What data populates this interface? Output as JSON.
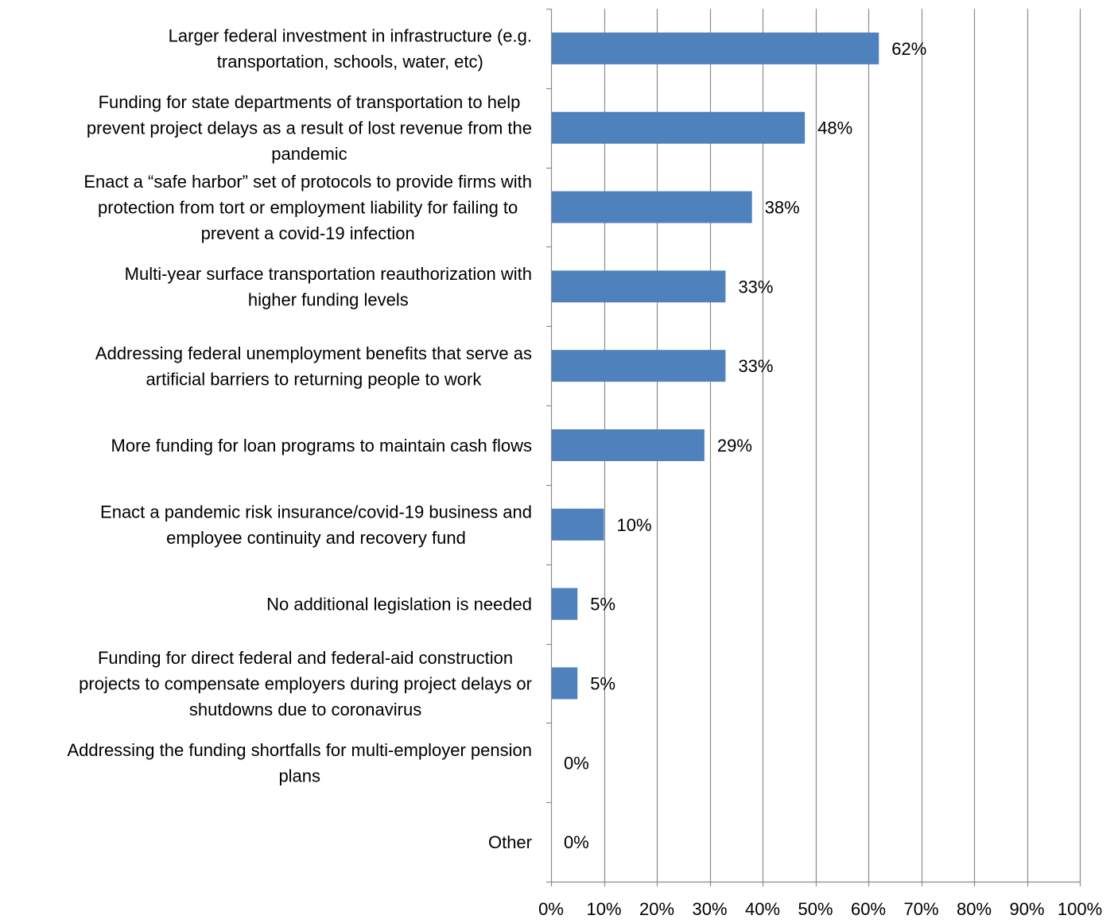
{
  "chart_data": {
    "type": "bar",
    "orientation": "horizontal",
    "title": "",
    "xlabel": "",
    "ylabel": "",
    "xlim": [
      0,
      100
    ],
    "grid": true,
    "legend": "none",
    "bar_color": "#4F81BD",
    "grid_color": "#8C8C8C",
    "axis_color": "#8C8C8C",
    "x_ticks": [
      {
        "value": 0,
        "label": "0%"
      },
      {
        "value": 10,
        "label": "10%"
      },
      {
        "value": 20,
        "label": "20%"
      },
      {
        "value": 30,
        "label": "30%"
      },
      {
        "value": 40,
        "label": "40%"
      },
      {
        "value": 50,
        "label": "50%"
      },
      {
        "value": 60,
        "label": "60%"
      },
      {
        "value": 70,
        "label": "70%"
      },
      {
        "value": 80,
        "label": "80%"
      },
      {
        "value": 90,
        "label": "90%"
      },
      {
        "value": 100,
        "label": "100%"
      }
    ],
    "categories": [
      {
        "lines": [
          "Larger federal investment in infrastructure (e.g.",
          "transportation, schools, water, etc)"
        ],
        "value": 62,
        "label": "62%"
      },
      {
        "lines": [
          "Funding for state departments of transportation to help",
          "prevent project delays as a result of lost revenue from the",
          "pandemic"
        ],
        "value": 48,
        "label": "48%"
      },
      {
        "lines": [
          "Enact a “safe harbor” set of protocols to provide firms with",
          "protection from tort or employment liability for failing to",
          "prevent a covid-19 infection"
        ],
        "value": 38,
        "label": "38%"
      },
      {
        "lines": [
          "Multi-year surface transportation reauthorization with",
          "higher funding levels"
        ],
        "value": 33,
        "label": "33%"
      },
      {
        "lines": [
          "Addressing federal unemployment benefits that serve as",
          "artificial barriers to returning people to work"
        ],
        "value": 33,
        "label": "33%"
      },
      {
        "lines": [
          "More funding for loan programs to maintain cash flows"
        ],
        "value": 29,
        "label": "29%"
      },
      {
        "lines": [
          "Enact a pandemic risk insurance/covid-19 business and",
          "employee continuity and recovery fund"
        ],
        "value": 10,
        "label": "10%"
      },
      {
        "lines": [
          "No additional legislation is needed"
        ],
        "value": 5,
        "label": "5%"
      },
      {
        "lines": [
          "Funding for direct federal and federal-aid construction",
          "projects to compensate employers during project delays or",
          "shutdowns due to coronavirus"
        ],
        "value": 5,
        "label": "5%"
      },
      {
        "lines": [
          "Addressing the funding shortfalls for multi-employer pension",
          "plans"
        ],
        "value": 0,
        "label": "0%"
      },
      {
        "lines": [
          "Other"
        ],
        "value": 0,
        "label": "0%"
      }
    ]
  }
}
